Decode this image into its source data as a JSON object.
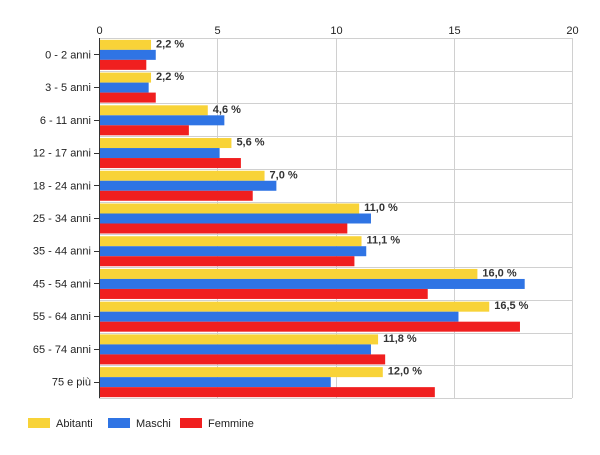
{
  "chart_data": {
    "type": "bar",
    "orientation": "horizontal",
    "title": "",
    "xlabel": "",
    "ylabel": "",
    "xlim": [
      0,
      20
    ],
    "x_ticks": [
      0,
      5,
      10,
      15,
      20
    ],
    "grid": true,
    "legend_position": "bottom-left",
    "categories": [
      "0 - 2 anni",
      "3 - 5 anni",
      "6 - 11 anni",
      "12 - 17 anni",
      "18 - 24 anni",
      "25 - 34 anni",
      "35 - 44 anni",
      "45 - 54 anni",
      "55 - 64 anni",
      "65 - 74 anni",
      "75 e più"
    ],
    "series": [
      {
        "name": "Abitanti",
        "color": "#f8d338",
        "values": [
          2.2,
          2.2,
          4.6,
          5.6,
          7.0,
          11.0,
          11.1,
          16.0,
          16.5,
          11.8,
          12.0
        ]
      },
      {
        "name": "Maschi",
        "color": "#2f74e4",
        "values": [
          2.4,
          2.1,
          5.3,
          5.1,
          7.5,
          11.5,
          11.3,
          18.0,
          15.2,
          11.5,
          9.8
        ]
      },
      {
        "name": "Femmine",
        "color": "#f01f1f",
        "values": [
          2.0,
          2.4,
          3.8,
          6.0,
          6.5,
          10.5,
          10.8,
          13.9,
          17.8,
          12.1,
          14.2
        ]
      }
    ],
    "data_labels": [
      "2,2 %",
      "2,2 %",
      "4,6 %",
      "5,6 %",
      "7,0 %",
      "11,0 %",
      "11,1 %",
      "16,0 %",
      "16,5 %",
      "11,8 %",
      "12,0 %"
    ]
  }
}
